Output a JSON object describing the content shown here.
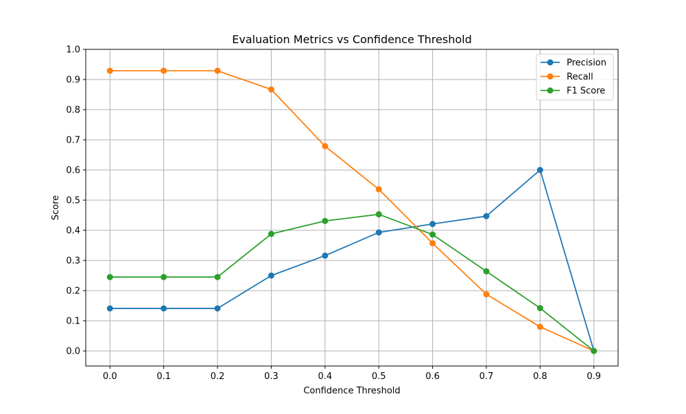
{
  "chart_data": {
    "type": "line",
    "title": "Evaluation Metrics vs Confidence Threshold",
    "xlabel": "Confidence Threshold",
    "ylabel": "Score",
    "x": [
      0.0,
      0.1,
      0.2,
      0.3,
      0.4,
      0.5,
      0.6,
      0.7,
      0.8,
      0.9
    ],
    "x_tick_labels": [
      "0.0",
      "0.1",
      "0.2",
      "0.3",
      "0.4",
      "0.5",
      "0.6",
      "0.7",
      "0.8",
      "0.9"
    ],
    "y_ticks": [
      0.0,
      0.1,
      0.2,
      0.3,
      0.4,
      0.5,
      0.6,
      0.7,
      0.8,
      0.9,
      1.0
    ],
    "y_tick_labels": [
      "0.0",
      "0.1",
      "0.2",
      "0.3",
      "0.4",
      "0.5",
      "0.6",
      "0.7",
      "0.8",
      "0.9",
      "1.0"
    ],
    "xlim": [
      -0.045,
      0.945
    ],
    "ylim": [
      -0.05,
      1.0
    ],
    "grid": true,
    "legend_position": "top-right",
    "series": [
      {
        "name": "Precision",
        "color": "#1f77b4",
        "marker": "circle",
        "values": [
          0.141,
          0.141,
          0.141,
          0.25,
          0.316,
          0.393,
          0.421,
          0.447,
          0.6,
          0.0
        ]
      },
      {
        "name": "Recall",
        "color": "#ff7f0e",
        "marker": "circle",
        "values": [
          0.929,
          0.929,
          0.929,
          0.867,
          0.679,
          0.536,
          0.357,
          0.188,
          0.08,
          0.0
        ]
      },
      {
        "name": "F1 Score",
        "color": "#2ca02c",
        "marker": "circle",
        "values": [
          0.245,
          0.245,
          0.245,
          0.388,
          0.431,
          0.453,
          0.386,
          0.264,
          0.142,
          0.0
        ]
      }
    ]
  }
}
